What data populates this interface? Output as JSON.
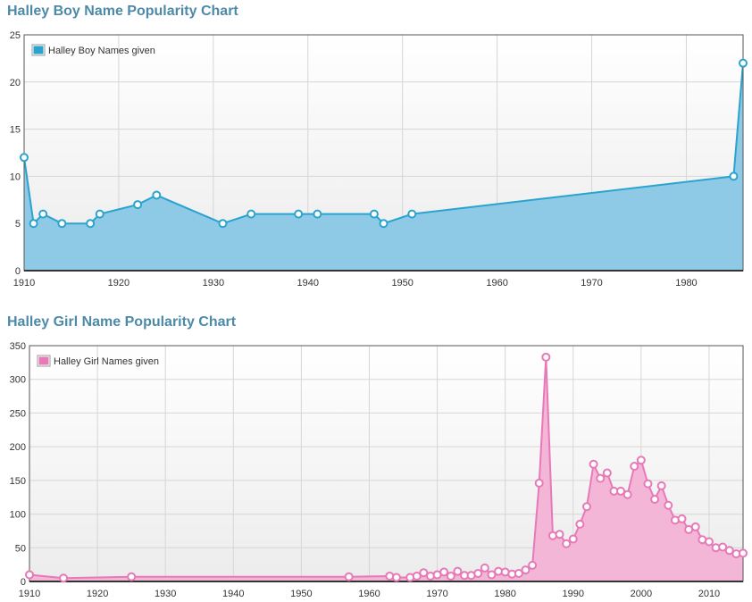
{
  "boy_chart": {
    "title": "Halley Boy Name Popularity Chart",
    "chart_data": {
      "type": "area",
      "series": [
        {
          "name": "Halley Boy Names given",
          "color": "#2aa3cf",
          "fill": "#8ecae6",
          "points": [
            [
              1910,
              12
            ],
            [
              1911,
              5
            ],
            [
              1912,
              6
            ],
            [
              1914,
              5
            ],
            [
              1917,
              5
            ],
            [
              1918,
              6
            ],
            [
              1922,
              7
            ],
            [
              1924,
              8
            ],
            [
              1931,
              5
            ],
            [
              1934,
              6
            ],
            [
              1939,
              6
            ],
            [
              1941,
              6
            ],
            [
              1947,
              6
            ],
            [
              1948,
              5
            ],
            [
              1951,
              6
            ],
            [
              1985,
              10
            ],
            [
              1986,
              22
            ]
          ]
        }
      ],
      "xlim": [
        1910,
        1986
      ],
      "ylim": [
        0,
        25
      ],
      "x_ticks": [
        1910,
        1920,
        1930,
        1940,
        1950,
        1960,
        1970,
        1980
      ],
      "y_ticks": [
        0,
        5,
        10,
        15,
        20,
        25
      ],
      "grid": true,
      "legend": "top-left"
    }
  },
  "girl_chart": {
    "title": "Halley Girl Name Popularity Chart",
    "chart_data": {
      "type": "area",
      "series": [
        {
          "name": "Halley Girl Names given",
          "color": "#e879b9",
          "fill": "#f3b6d7",
          "points": [
            [
              1910,
              10
            ],
            [
              1915,
              5
            ],
            [
              1925,
              7
            ],
            [
              1957,
              7
            ],
            [
              1963,
              8
            ],
            [
              1964,
              6
            ],
            [
              1966,
              6
            ],
            [
              1967,
              8
            ],
            [
              1968,
              13
            ],
            [
              1969,
              8
            ],
            [
              1970,
              10
            ],
            [
              1971,
              14
            ],
            [
              1972,
              8
            ],
            [
              1973,
              15
            ],
            [
              1974,
              9
            ],
            [
              1975,
              9
            ],
            [
              1976,
              12
            ],
            [
              1977,
              20
            ],
            [
              1978,
              10
            ],
            [
              1979,
              15
            ],
            [
              1980,
              14
            ],
            [
              1981,
              11
            ],
            [
              1982,
              12
            ],
            [
              1983,
              17
            ],
            [
              1984,
              24
            ],
            [
              1985,
              146
            ],
            [
              1986,
              333
            ],
            [
              1987,
              68
            ],
            [
              1988,
              70
            ],
            [
              1989,
              56
            ],
            [
              1990,
              63
            ],
            [
              1991,
              85
            ],
            [
              1992,
              111
            ],
            [
              1993,
              174
            ],
            [
              1994,
              153
            ],
            [
              1995,
              161
            ],
            [
              1996,
              134
            ],
            [
              1997,
              134
            ],
            [
              1998,
              129
            ],
            [
              1999,
              171
            ],
            [
              2000,
              180
            ],
            [
              2001,
              145
            ],
            [
              2002,
              122
            ],
            [
              2003,
              142
            ],
            [
              2004,
              113
            ],
            [
              2005,
              91
            ],
            [
              2006,
              93
            ],
            [
              2007,
              77
            ],
            [
              2008,
              81
            ],
            [
              2009,
              62
            ],
            [
              2010,
              59
            ],
            [
              2011,
              50
            ],
            [
              2012,
              51
            ],
            [
              2013,
              46
            ],
            [
              2014,
              41
            ],
            [
              2015,
              42
            ]
          ]
        }
      ],
      "xlim": [
        1910,
        2015
      ],
      "ylim": [
        0,
        350
      ],
      "x_ticks": [
        1910,
        1920,
        1930,
        1940,
        1950,
        1960,
        1970,
        1980,
        1990,
        2000,
        2010
      ],
      "y_ticks": [
        0,
        50,
        100,
        150,
        200,
        250,
        300,
        350
      ],
      "grid": true,
      "legend": "top-left"
    }
  }
}
